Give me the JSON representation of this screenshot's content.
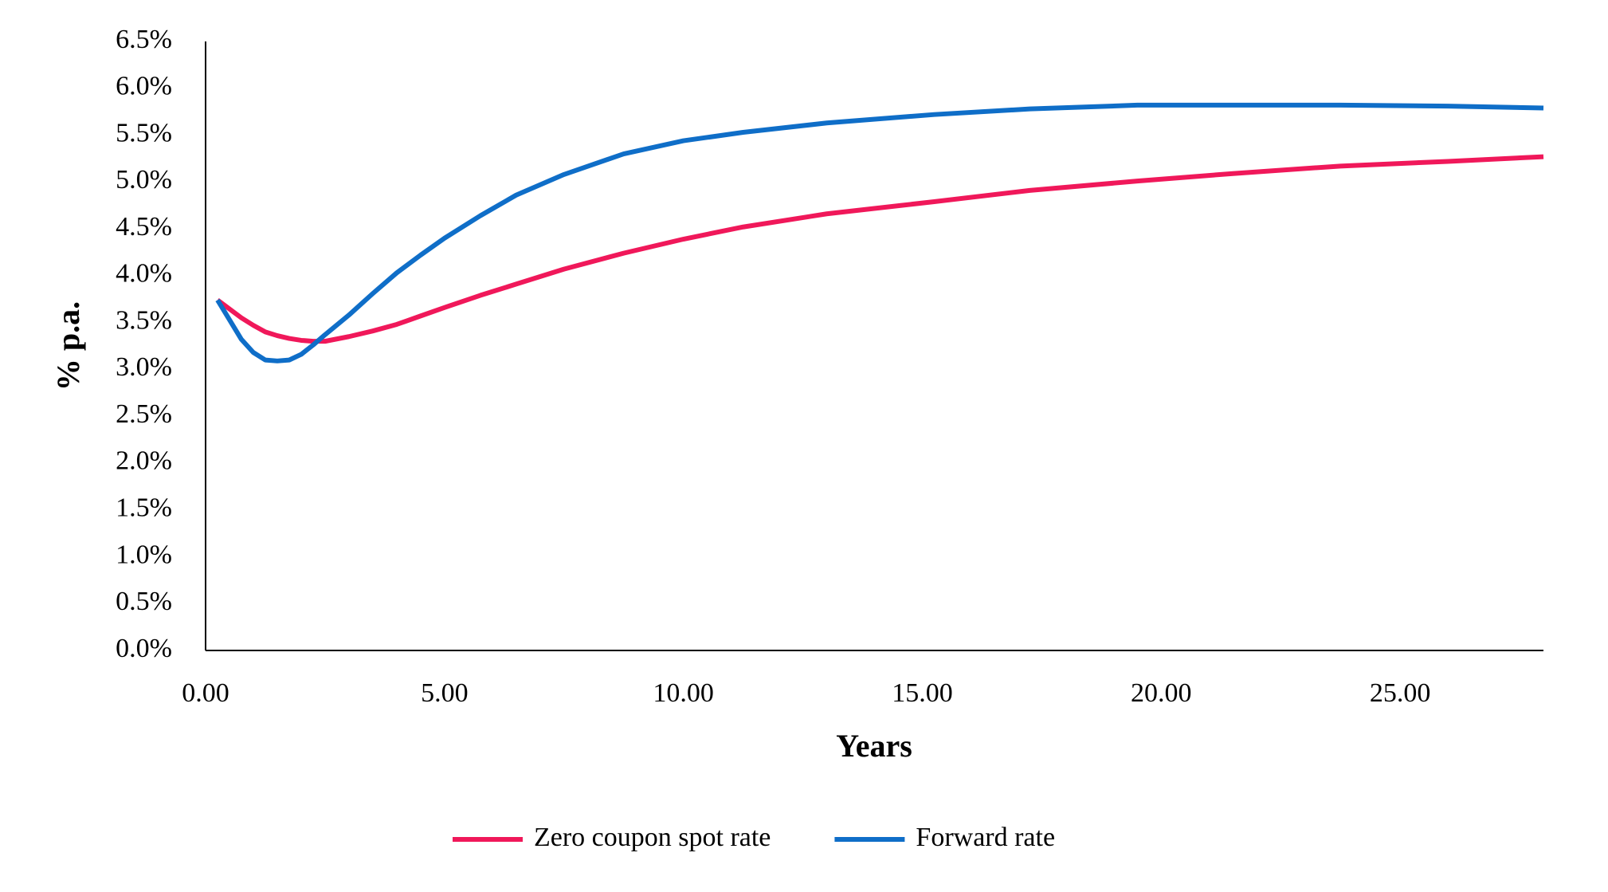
{
  "chart_data": {
    "type": "line",
    "x_label": "Years",
    "y_label": "% p.a.",
    "x": [
      0.25,
      0.75,
      1.0,
      1.25,
      1.5,
      1.75,
      2.0,
      2.25,
      2.5,
      3.0,
      3.5,
      4.0,
      4.5,
      5.0,
      5.75,
      6.5,
      7.5,
      8.75,
      10.0,
      11.25,
      13.0,
      15.25,
      17.25,
      19.5,
      21.5,
      23.75,
      26.0,
      28.0
    ],
    "series": [
      {
        "name": "Zero coupon spot rate",
        "color": "#f0185a",
        "values": [
          3.74,
          3.55,
          3.47,
          3.4,
          3.36,
          3.33,
          3.31,
          3.3,
          3.3,
          3.35,
          3.41,
          3.48,
          3.57,
          3.66,
          3.79,
          3.91,
          4.07,
          4.24,
          4.39,
          4.52,
          4.66,
          4.79,
          4.91,
          5.01,
          5.09,
          5.17,
          5.22,
          5.27
        ]
      },
      {
        "name": "Forward rate",
        "color": "#0f6ec8",
        "values": [
          3.74,
          3.32,
          3.18,
          3.1,
          3.09,
          3.1,
          3.16,
          3.26,
          3.37,
          3.58,
          3.81,
          4.03,
          4.22,
          4.4,
          4.64,
          4.86,
          5.08,
          5.3,
          5.44,
          5.53,
          5.63,
          5.72,
          5.78,
          5.82,
          5.82,
          5.82,
          5.81,
          5.79
        ]
      }
    ],
    "xlim": [
      0,
      28
    ],
    "ylim": [
      0,
      6.5
    ],
    "xticks": [
      {
        "value": 0,
        "label": "0.00"
      },
      {
        "value": 5,
        "label": "5.00"
      },
      {
        "value": 10,
        "label": "10.00"
      },
      {
        "value": 15,
        "label": "15.00"
      },
      {
        "value": 20,
        "label": "20.00"
      },
      {
        "value": 25,
        "label": "25.00"
      }
    ],
    "yticks": [
      {
        "value": 0,
        "label": "0.0%"
      },
      {
        "value": 0.5,
        "label": "0.5%"
      },
      {
        "value": 1,
        "label": "1.0%"
      },
      {
        "value": 1.5,
        "label": "1.5%"
      },
      {
        "value": 2,
        "label": "2.0%"
      },
      {
        "value": 2.5,
        "label": "2.5%"
      },
      {
        "value": 3,
        "label": "3.0%"
      },
      {
        "value": 3.5,
        "label": "3.5%"
      },
      {
        "value": 4,
        "label": "4.0%"
      },
      {
        "value": 4.5,
        "label": "4.5%"
      },
      {
        "value": 5,
        "label": "5.0%"
      },
      {
        "value": 5.5,
        "label": "5.5%"
      },
      {
        "value": 6,
        "label": "6.0%"
      },
      {
        "value": 6.5,
        "label": "6.5%"
      }
    ],
    "legend": "bottom"
  }
}
